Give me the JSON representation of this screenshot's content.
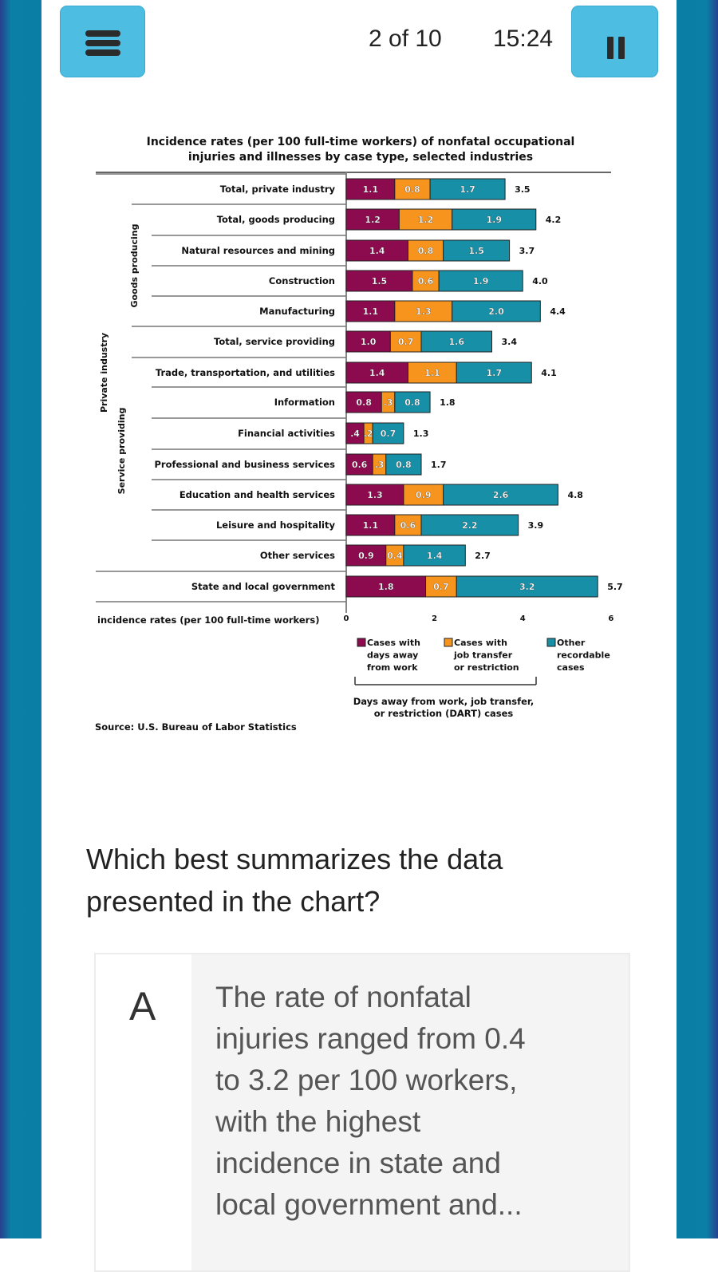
{
  "header": {
    "progress": "2 of 10",
    "timer": "15:24",
    "menu_icon": "hamburger-icon",
    "pause_icon": "pause-icon"
  },
  "chart_data": {
    "type": "bar",
    "stacked": true,
    "orientation": "horizontal",
    "title_line1": "Incidence rates (per 100 full-time workers) of nonfatal occupational",
    "title_line2": "injuries and illnesses by case type, selected industries",
    "xlabel": "incidence rates (per 100 full-time workers)",
    "xlim": [
      0,
      6
    ],
    "xticks": [
      "0",
      "2",
      "4",
      "6"
    ],
    "group_labels": {
      "private": "Private industry",
      "goods": "Goods producing",
      "service": "Service providing"
    },
    "categories": [
      "Total, private industry",
      "Total, goods producing",
      "Natural resources and mining",
      "Construction",
      "Manufacturing",
      "Total, service providing",
      "Trade, transportation, and utilities",
      "Information",
      "Financial activities",
      "Professional and business services",
      "Education and health services",
      "Leisure and hospitality",
      "Other services",
      "State and local government"
    ],
    "series": [
      {
        "name": "Cases with days away from work",
        "color": "#8c0b4f",
        "values": [
          1.1,
          1.2,
          1.4,
          1.5,
          1.1,
          1.0,
          1.4,
          0.8,
          0.4,
          0.6,
          1.3,
          1.1,
          0.9,
          1.8
        ],
        "labels": [
          "1.1",
          "1.2",
          "1.4",
          "1.5",
          "1.1",
          "1.0",
          "1.4",
          "0.8",
          ".4",
          "0.6",
          "1.3",
          "1.1",
          "0.9",
          "1.8"
        ]
      },
      {
        "name": "Cases with job transfer or restriction",
        "color": "#f7941d",
        "values": [
          0.8,
          1.2,
          0.8,
          0.6,
          1.3,
          0.7,
          1.1,
          0.3,
          0.2,
          0.3,
          0.9,
          0.6,
          0.4,
          0.7
        ],
        "labels": [
          "0.8",
          "1.2",
          "0.8",
          "0.6",
          "1.3",
          "0.7",
          "1.1",
          ".3",
          ".2",
          ".3",
          "0.9",
          "0.6",
          "0.4",
          "0.7"
        ]
      },
      {
        "name": "Other recordable cases",
        "color": "#178fa6",
        "values": [
          1.7,
          1.9,
          1.5,
          1.9,
          2.0,
          1.6,
          1.7,
          0.8,
          0.7,
          0.8,
          2.6,
          2.2,
          1.4,
          3.2
        ],
        "labels": [
          "1.7",
          "1.9",
          "1.5",
          "1.9",
          "2.0",
          "1.6",
          "1.7",
          "0.8",
          "0.7",
          "0.8",
          "2.6",
          "2.2",
          "1.4",
          "3.2"
        ]
      }
    ],
    "totals": [
      "3.5",
      "4.2",
      "3.7",
      "4.0",
      "4.4",
      "3.4",
      "4.1",
      "1.8",
      "1.3",
      "1.7",
      "4.8",
      "3.9",
      "2.7",
      "5.7"
    ],
    "legend": [
      [
        "Cases with",
        "days away",
        "from work"
      ],
      [
        "Cases with",
        "job transfer",
        "or restriction"
      ],
      [
        "Other",
        "recordable",
        "cases"
      ]
    ],
    "dart_label": [
      "Days away from work, job transfer,",
      "or restriction (DART) cases"
    ],
    "source": "Source: U.S. Bureau of Labor Statistics"
  },
  "question": "Which best summarizes the data presented in the chart?",
  "options": [
    {
      "letter": "A",
      "text": "The rate of nonfatal injuries ranged from 0.4 to 3.2 per 100 workers, with the highest incidence in state and local government and..."
    }
  ]
}
